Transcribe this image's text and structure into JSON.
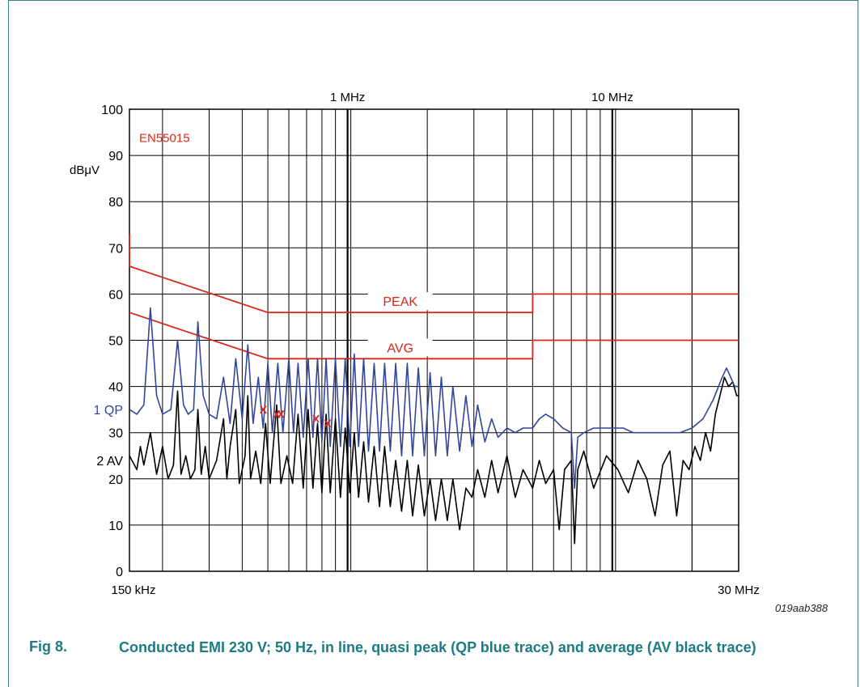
{
  "figure": {
    "number": "Fig 8.",
    "caption": "Conducted EMI 230 V; 50 Hz, in line, quasi peak (QP blue trace) and average (AV black trace)",
    "code": "019aab388"
  },
  "colors": {
    "limits": "#d8281b",
    "qp": "#33479a",
    "av": "#000000",
    "grid": "#000000"
  },
  "chart_data": {
    "type": "line",
    "x_scale": "log",
    "xlim_hz": [
      150000,
      30000000
    ],
    "ylim": [
      0,
      100
    ],
    "ylabel": "dBμV",
    "y_ticks": [
      0,
      10,
      20,
      30,
      40,
      50,
      60,
      70,
      80,
      90,
      100
    ],
    "x_tick_labels": [
      {
        "freq_hz": 150000,
        "label": "150 kHz",
        "position": "bottom"
      },
      {
        "freq_hz": 1000000,
        "label": "1 MHz",
        "position": "top"
      },
      {
        "freq_hz": 10000000,
        "label": "10 MHz",
        "position": "top"
      },
      {
        "freq_hz": 30000000,
        "label": "30 MHz",
        "position": "bottom"
      }
    ],
    "standard_label": "EN55015",
    "limit_lines": [
      {
        "name": "PEAK",
        "points": [
          [
            150000,
            73
          ],
          [
            150000,
            66
          ],
          [
            500000,
            56
          ],
          [
            5000000,
            56
          ],
          [
            5000000,
            60
          ],
          [
            30000000,
            60
          ]
        ]
      },
      {
        "name": "AVG",
        "points": [
          [
            150000,
            56
          ],
          [
            500000,
            46
          ],
          [
            5000000,
            46
          ],
          [
            5000000,
            50
          ],
          [
            30000000,
            50
          ]
        ]
      }
    ],
    "series": [
      {
        "name": "1 QP",
        "label_y": 35,
        "points": [
          [
            150000,
            35
          ],
          [
            160000,
            34
          ],
          [
            170000,
            36
          ],
          [
            180000,
            57
          ],
          [
            190000,
            38
          ],
          [
            200000,
            34
          ],
          [
            215000,
            35
          ],
          [
            228000,
            50
          ],
          [
            240000,
            36
          ],
          [
            250000,
            34
          ],
          [
            262000,
            35
          ],
          [
            272000,
            54
          ],
          [
            285000,
            38
          ],
          [
            300000,
            34
          ],
          [
            320000,
            33
          ],
          [
            340000,
            42
          ],
          [
            360000,
            32
          ],
          [
            378000,
            46
          ],
          [
            400000,
            33
          ],
          [
            420000,
            49
          ],
          [
            440000,
            32
          ],
          [
            460000,
            42
          ],
          [
            480000,
            31
          ],
          [
            500000,
            45
          ],
          [
            520000,
            30
          ],
          [
            545000,
            45
          ],
          [
            570000,
            30
          ],
          [
            600000,
            46
          ],
          [
            625000,
            30
          ],
          [
            650000,
            45
          ],
          [
            680000,
            29
          ],
          [
            710000,
            46
          ],
          [
            740000,
            29
          ],
          [
            770000,
            46
          ],
          [
            800000,
            28
          ],
          [
            830000,
            46
          ],
          [
            860000,
            27
          ],
          [
            900000,
            46
          ],
          [
            940000,
            27
          ],
          [
            980000,
            46
          ],
          [
            1020000,
            27
          ],
          [
            1060000,
            47
          ],
          [
            1100000,
            27
          ],
          [
            1150000,
            46
          ],
          [
            1200000,
            26
          ],
          [
            1260000,
            45
          ],
          [
            1320000,
            26
          ],
          [
            1380000,
            45
          ],
          [
            1450000,
            26
          ],
          [
            1520000,
            45
          ],
          [
            1600000,
            25
          ],
          [
            1680000,
            45
          ],
          [
            1760000,
            25
          ],
          [
            1850000,
            44
          ],
          [
            1950000,
            25
          ],
          [
            2050000,
            43
          ],
          [
            2150000,
            25
          ],
          [
            2260000,
            42
          ],
          [
            2380000,
            25
          ],
          [
            2500000,
            40
          ],
          [
            2650000,
            26
          ],
          [
            2800000,
            38
          ],
          [
            2950000,
            27
          ],
          [
            3100000,
            36
          ],
          [
            3300000,
            28
          ],
          [
            3500000,
            33
          ],
          [
            3700000,
            29
          ],
          [
            4000000,
            31
          ],
          [
            4300000,
            30
          ],
          [
            4600000,
            31
          ],
          [
            5000000,
            31
          ],
          [
            5300000,
            33
          ],
          [
            5600000,
            34
          ],
          [
            6000000,
            33
          ],
          [
            6500000,
            31
          ],
          [
            7000000,
            30
          ],
          [
            7200000,
            18
          ],
          [
            7400000,
            29
          ],
          [
            7800000,
            30
          ],
          [
            8500000,
            31
          ],
          [
            9500000,
            31
          ],
          [
            11000000,
            31
          ],
          [
            12000000,
            30
          ],
          [
            14000000,
            30
          ],
          [
            16000000,
            30
          ],
          [
            18000000,
            30
          ],
          [
            20000000,
            31
          ],
          [
            22000000,
            33
          ],
          [
            24000000,
            37
          ],
          [
            26000000,
            42
          ],
          [
            27000000,
            44
          ],
          [
            28000000,
            42
          ],
          [
            29000000,
            40
          ],
          [
            30000000,
            40
          ]
        ]
      },
      {
        "name": "2 AV",
        "label_y": 24,
        "points": [
          [
            150000,
            25
          ],
          [
            160000,
            22
          ],
          [
            165000,
            27
          ],
          [
            170000,
            23
          ],
          [
            180000,
            30
          ],
          [
            190000,
            21
          ],
          [
            200000,
            27
          ],
          [
            210000,
            20
          ],
          [
            220000,
            23
          ],
          [
            228000,
            39
          ],
          [
            235000,
            21
          ],
          [
            245000,
            25
          ],
          [
            255000,
            20
          ],
          [
            265000,
            22
          ],
          [
            272000,
            35
          ],
          [
            280000,
            21
          ],
          [
            290000,
            27
          ],
          [
            300000,
            20
          ],
          [
            320000,
            24
          ],
          [
            340000,
            33
          ],
          [
            350000,
            20
          ],
          [
            360000,
            27
          ],
          [
            378000,
            35
          ],
          [
            390000,
            19
          ],
          [
            410000,
            25
          ],
          [
            420000,
            38
          ],
          [
            430000,
            20
          ],
          [
            450000,
            26
          ],
          [
            470000,
            19
          ],
          [
            490000,
            32
          ],
          [
            510000,
            19
          ],
          [
            540000,
            36
          ],
          [
            560000,
            19
          ],
          [
            590000,
            25
          ],
          [
            620000,
            19
          ],
          [
            650000,
            34
          ],
          [
            680000,
            18
          ],
          [
            710000,
            35
          ],
          [
            740000,
            18
          ],
          [
            770000,
            32
          ],
          [
            800000,
            17
          ],
          [
            830000,
            34
          ],
          [
            860000,
            17
          ],
          [
            900000,
            33
          ],
          [
            940000,
            16
          ],
          [
            980000,
            31
          ],
          [
            1020000,
            17
          ],
          [
            1060000,
            30
          ],
          [
            1100000,
            16
          ],
          [
            1150000,
            28
          ],
          [
            1200000,
            15
          ],
          [
            1260000,
            27
          ],
          [
            1320000,
            14
          ],
          [
            1380000,
            27
          ],
          [
            1450000,
            14
          ],
          [
            1520000,
            24
          ],
          [
            1600000,
            13
          ],
          [
            1680000,
            24
          ],
          [
            1760000,
            12
          ],
          [
            1850000,
            23
          ],
          [
            1950000,
            12
          ],
          [
            2050000,
            20
          ],
          [
            2150000,
            11
          ],
          [
            2260000,
            20
          ],
          [
            2380000,
            11
          ],
          [
            2500000,
            20
          ],
          [
            2650000,
            9
          ],
          [
            2800000,
            18
          ],
          [
            2950000,
            16
          ],
          [
            3100000,
            22
          ],
          [
            3300000,
            16
          ],
          [
            3500000,
            24
          ],
          [
            3700000,
            17
          ],
          [
            4000000,
            25
          ],
          [
            4300000,
            16
          ],
          [
            4600000,
            22
          ],
          [
            5000000,
            18
          ],
          [
            5300000,
            24
          ],
          [
            5600000,
            19
          ],
          [
            6000000,
            22
          ],
          [
            6300000,
            9
          ],
          [
            6600000,
            22
          ],
          [
            7000000,
            24
          ],
          [
            7200000,
            6
          ],
          [
            7400000,
            22
          ],
          [
            7800000,
            26
          ],
          [
            8500000,
            18
          ],
          [
            9500000,
            25
          ],
          [
            10500000,
            22
          ],
          [
            11500000,
            17
          ],
          [
            12500000,
            24
          ],
          [
            13500000,
            20
          ],
          [
            14500000,
            12
          ],
          [
            15500000,
            23
          ],
          [
            16500000,
            26
          ],
          [
            17500000,
            12
          ],
          [
            18500000,
            24
          ],
          [
            19500000,
            22
          ],
          [
            20500000,
            27
          ],
          [
            21500000,
            24
          ],
          [
            22500000,
            30
          ],
          [
            23500000,
            26
          ],
          [
            24500000,
            34
          ],
          [
            25500000,
            38
          ],
          [
            26500000,
            42
          ],
          [
            27500000,
            40
          ],
          [
            28500000,
            41
          ],
          [
            29500000,
            38
          ],
          [
            30000000,
            38
          ]
        ]
      }
    ],
    "markers": [
      {
        "freq_hz": 480000,
        "value": 35,
        "symbol": "x"
      },
      {
        "freq_hz": 540000,
        "value": 34,
        "symbol": "x"
      },
      {
        "freq_hz": 560000,
        "value": 34,
        "symbol": "x"
      },
      {
        "freq_hz": 760000,
        "value": 33,
        "symbol": "x"
      },
      {
        "freq_hz": 840000,
        "value": 32,
        "symbol": "x"
      }
    ]
  }
}
